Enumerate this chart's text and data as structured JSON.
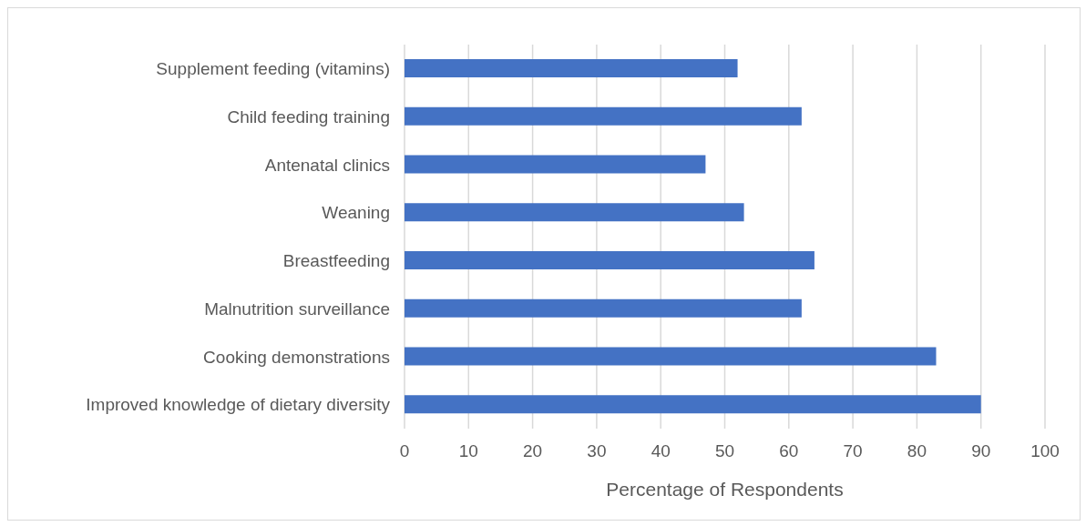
{
  "chart_data": {
    "type": "bar",
    "orientation": "horizontal",
    "xlabel": "Percentage of Respondents",
    "categories": [
      "Supplement feeding (vitamins)",
      "Child feeding training",
      "Antenatal clinics",
      "Weaning",
      "Breastfeeding",
      "Malnutrition surveillance",
      "Cooking demonstrations",
      "Improved knowledge of dietary diversity"
    ],
    "values": [
      52,
      62,
      47,
      53,
      64,
      62,
      83,
      90
    ],
    "color": "#4472c4",
    "xlim": [
      0,
      100
    ],
    "xticks": [
      0,
      10,
      20,
      30,
      40,
      50,
      60,
      70,
      80,
      90,
      100
    ],
    "grid": "x",
    "legend": false
  }
}
